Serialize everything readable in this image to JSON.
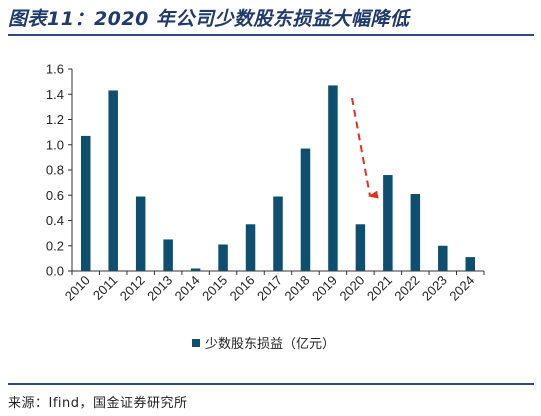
{
  "header": {
    "title": "图表11：2020 年公司少数股东损益大幅降低"
  },
  "footer": {
    "source": "来源：Ifind，国金证券研究所"
  },
  "colors": {
    "bar": "#0e4f70",
    "arrow": "#e1301f",
    "rule": "#2d4b80",
    "axis": "#333333"
  },
  "chart_data": {
    "type": "bar",
    "categories": [
      "2010",
      "2011",
      "2012",
      "2013",
      "2014",
      "2015",
      "2016",
      "2017",
      "2018",
      "2019",
      "2020",
      "2021",
      "2022",
      "2023",
      "2024"
    ],
    "series": [
      {
        "name": "少数股东损益（亿元）",
        "values": [
          1.07,
          1.43,
          0.59,
          0.25,
          0.02,
          0.21,
          0.37,
          0.59,
          0.97,
          1.47,
          0.37,
          0.76,
          0.61,
          0.2,
          0.11
        ]
      }
    ],
    "ylim": [
      0,
      1.6
    ],
    "yticks": [
      "0.0",
      "0.2",
      "0.4",
      "0.6",
      "0.8",
      "1.0",
      "1.2",
      "1.4",
      "1.6"
    ],
    "legend_position": "bottom-center",
    "grid": false,
    "annotation": "red dashed arrow pointing down from 2019 to 2020"
  }
}
